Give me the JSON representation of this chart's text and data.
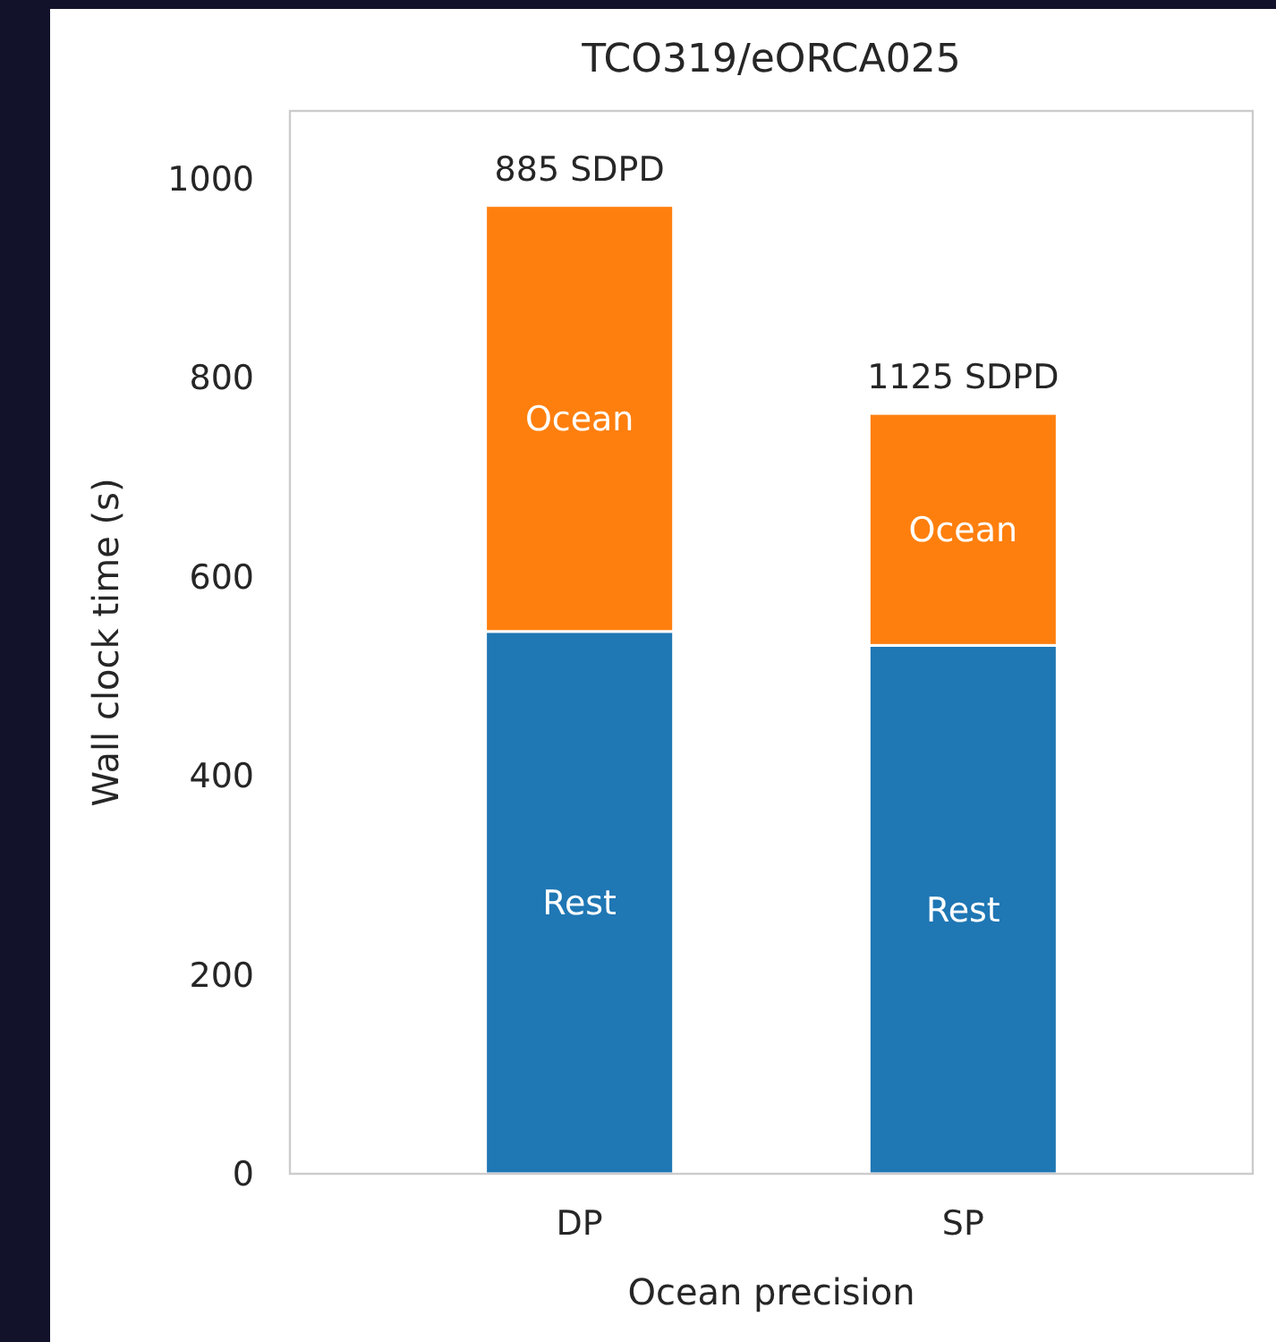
{
  "chart_data": {
    "type": "bar",
    "title": "TCO319/eORCA025",
    "xlabel": "Ocean precision",
    "ylabel": "Wall clock time (s)",
    "categories": [
      "DP",
      "SP"
    ],
    "stacked": true,
    "series": [
      {
        "name": "Rest",
        "color": "#1f77b4",
        "values": [
          545,
          531
        ]
      },
      {
        "name": "Ocean",
        "color": "#ff7f0e",
        "values": [
          428,
          233
        ]
      }
    ],
    "annotations": [
      {
        "text": "885 SDPD",
        "x": "DP",
        "y": 973
      },
      {
        "text": "1125 SDPD",
        "x": "SP",
        "y": 764
      }
    ],
    "ylim": [
      0,
      1068
    ],
    "yticks": [
      0,
      200,
      400,
      600,
      800,
      1000
    ],
    "grid": false
  }
}
